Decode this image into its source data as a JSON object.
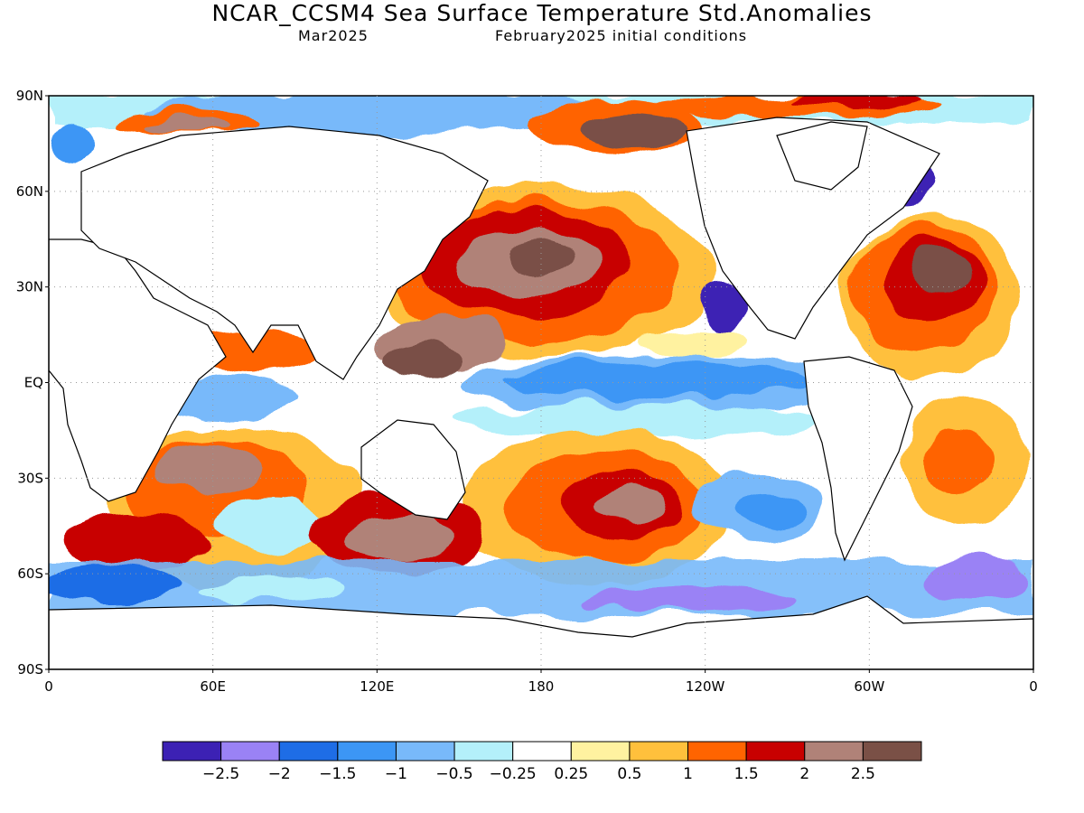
{
  "title": "NCAR_CCSM4 Sea Surface Temperature Std.Anomalies",
  "subtitle_valid": "Mar2025",
  "subtitle_init": "February2025 initial conditions",
  "lat_labels": [
    "90N",
    "60N",
    "30N",
    "EQ",
    "30S",
    "60S",
    "90S"
  ],
  "lon_labels": [
    "0",
    "60E",
    "120E",
    "180",
    "120W",
    "60W",
    "0"
  ],
  "colorbar": {
    "labels": [
      "-2.5",
      "-2",
      "-1.5",
      "-1",
      "-0.5",
      "-0.25",
      "0.25",
      "0.5",
      "1",
      "1.5",
      "2",
      "2.5"
    ],
    "colors": [
      "#3c21b4",
      "#9a82f5",
      "#1e6de6",
      "#3c96f5",
      "#78b9fa",
      "#b4f0fa",
      "#ffffff",
      "#fff2a0",
      "#ffc03c",
      "#ff6400",
      "#c80000",
      "#b08278",
      "#7a5046"
    ]
  }
}
